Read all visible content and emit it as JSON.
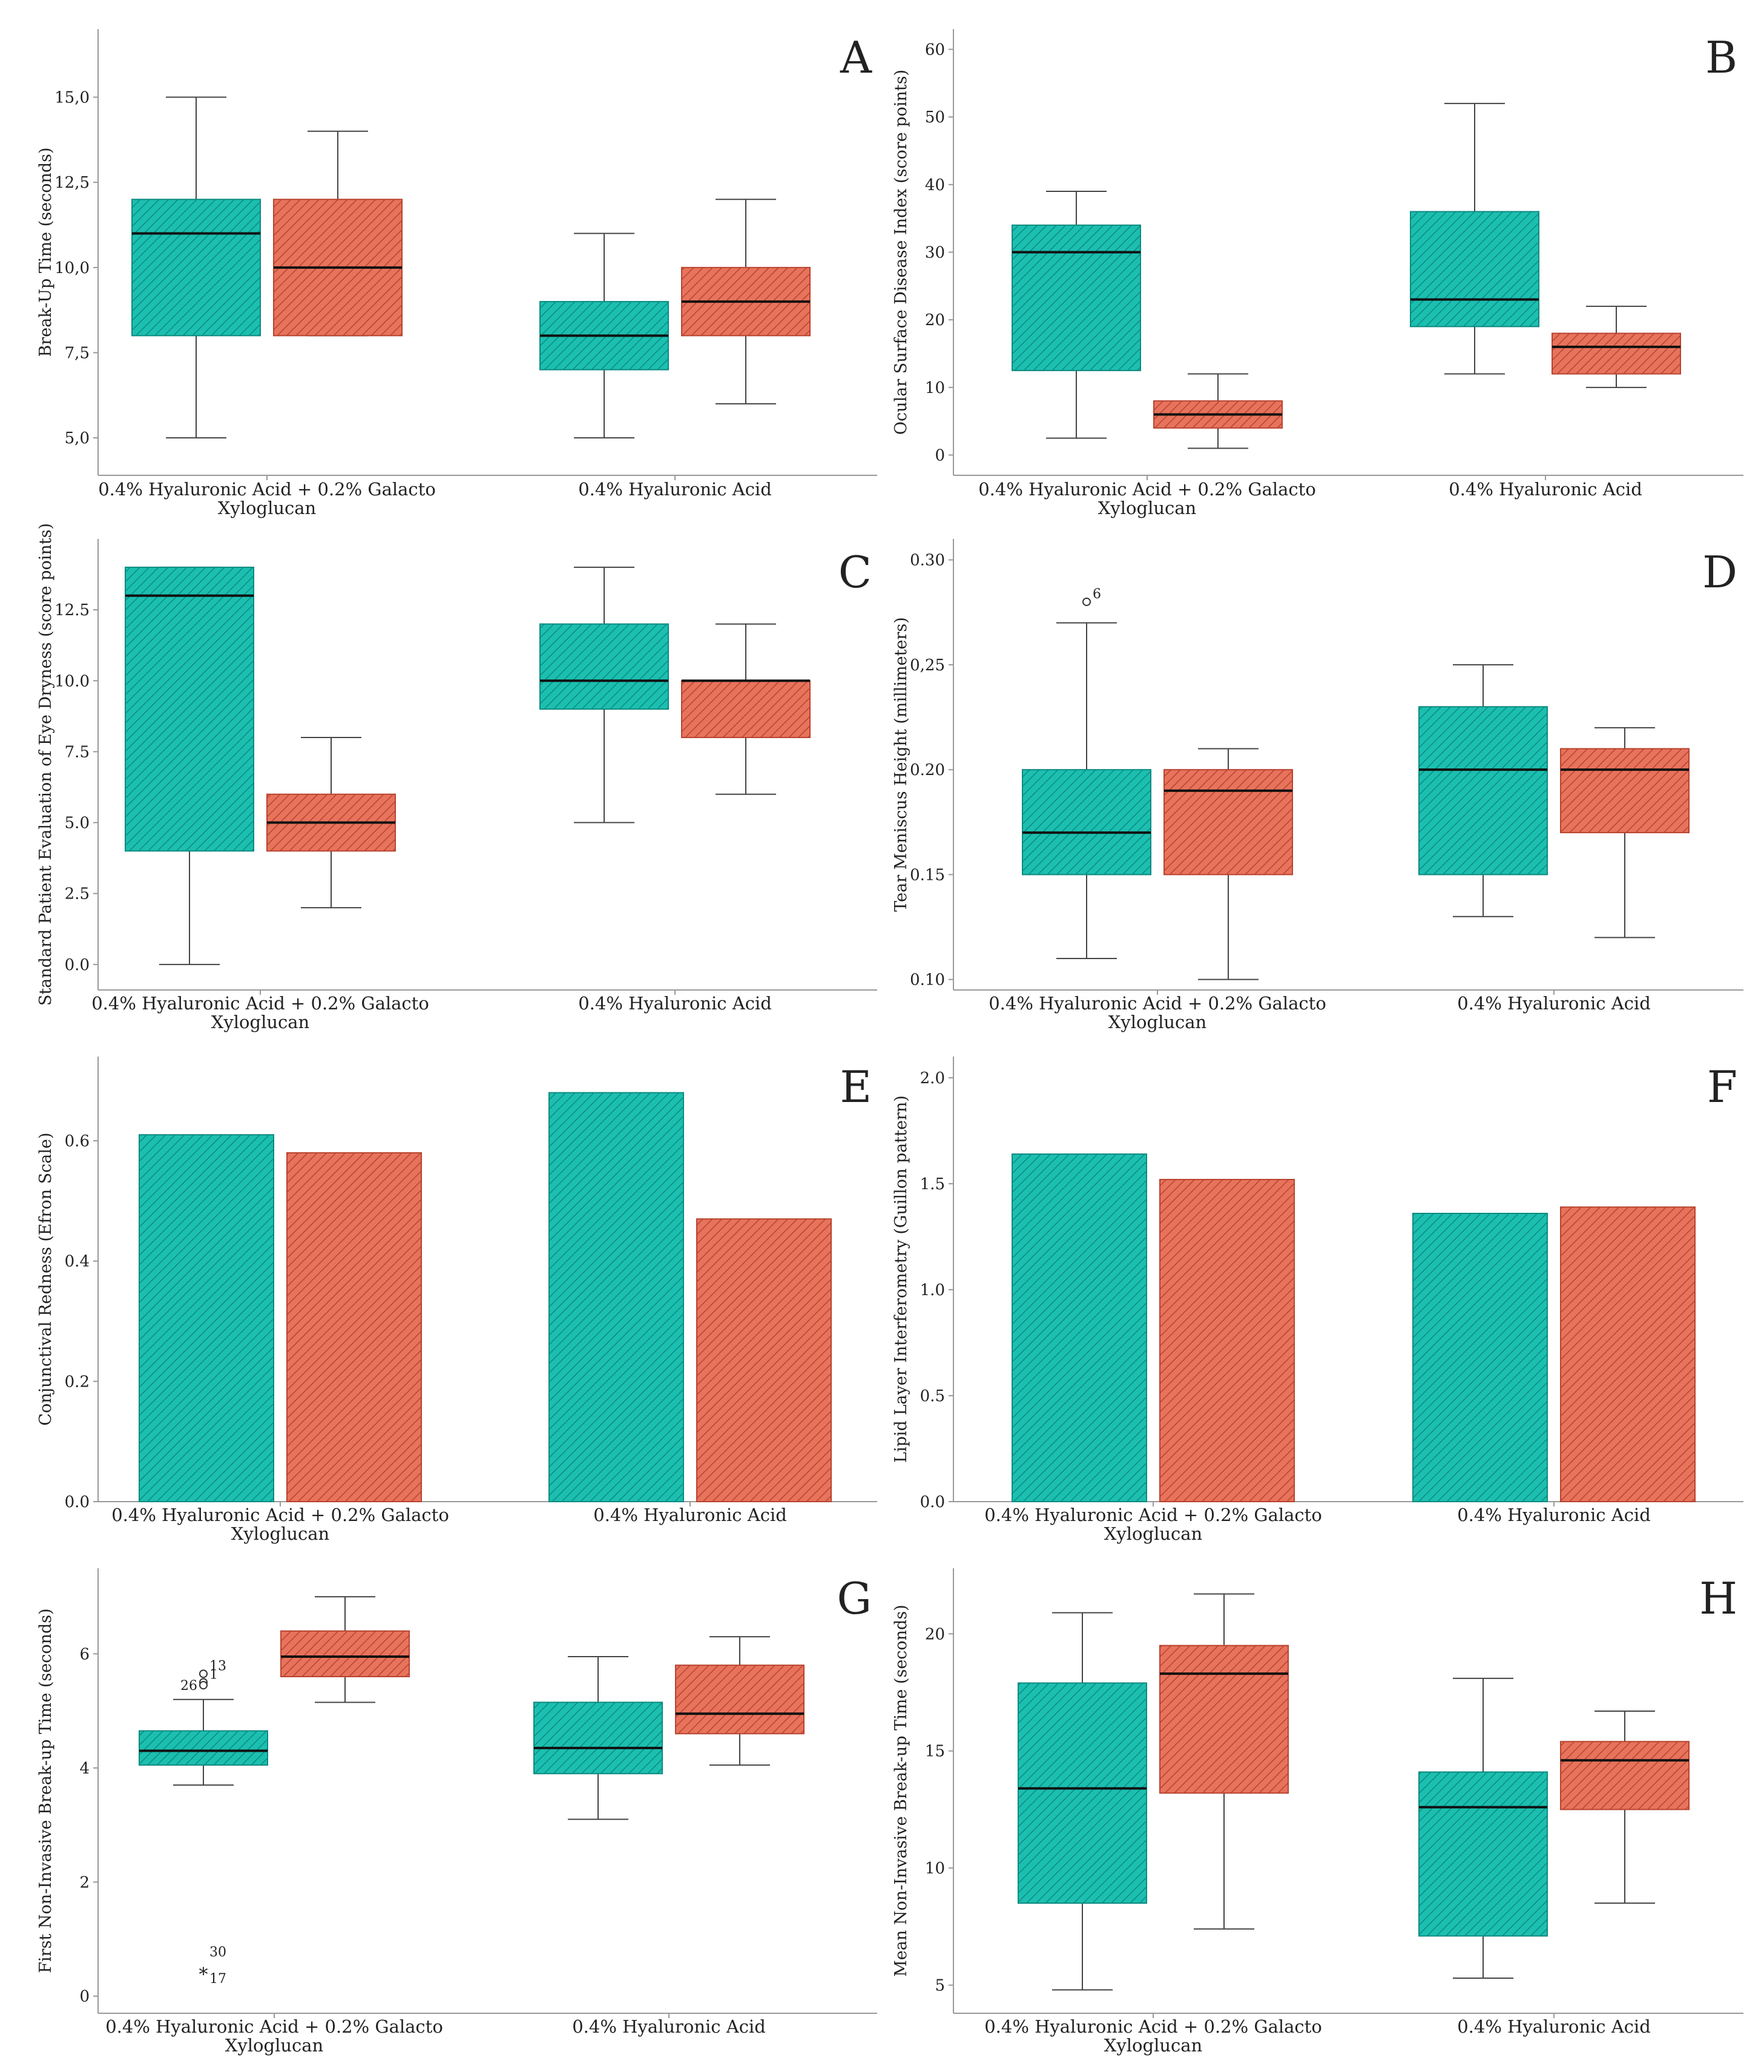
{
  "colors": {
    "teal": "#1bbfb0",
    "salmon": "#e8735c",
    "axis": "#999999",
    "whisker": "#444444"
  },
  "chart_data": [
    {
      "panel": "A",
      "type": "box",
      "ylabel": "Break-Up Time (seconds)",
      "ylim": [
        3.9,
        17.0
      ],
      "ticks": [
        5.0,
        7.5,
        10.0,
        12.5,
        15.0
      ],
      "tick_labels": [
        "5,0",
        "7,5",
        "10,0",
        "12,5",
        "15,0"
      ],
      "categories": [
        "0.4% Hyaluronic Acid + 0.2% Galacto Xyloglucan",
        "0.4% Hyaluronic Acid"
      ],
      "category_lines": [
        [
          "0.4% Hyaluronic Acid + 0.2% Galacto",
          "Xyloglucan"
        ],
        [
          "0.4% Hyaluronic Acid"
        ]
      ],
      "series": [
        {
          "name": "teal",
          "boxes": [
            {
              "min": 5,
              "q1": 8,
              "median": 11,
              "q3": 12,
              "max": 15
            },
            {
              "min": 5,
              "q1": 7,
              "median": 8,
              "q3": 9,
              "max": 11
            }
          ]
        },
        {
          "name": "salmon",
          "boxes": [
            {
              "min": 8,
              "q1": 8,
              "median": 10,
              "q3": 12,
              "max": 14
            },
            {
              "min": 6,
              "q1": 8,
              "median": 9,
              "q3": 10,
              "max": 12
            }
          ]
        }
      ],
      "outliers": []
    },
    {
      "panel": "B",
      "type": "box",
      "ylabel": "Ocular Surface Disease Index (score points)",
      "ylim": [
        -3,
        63
      ],
      "ticks": [
        0,
        10,
        20,
        30,
        40,
        50,
        60
      ],
      "tick_labels": [
        "0",
        "10",
        "20",
        "30",
        "40",
        "50",
        "60"
      ],
      "categories": [
        "0.4% Hyaluronic Acid + 0.2% Galacto Xyloglucan",
        "0.4% Hyaluronic Acid"
      ],
      "category_lines": [
        [
          "0.4% Hyaluronic Acid + 0.2% Galacto",
          "Xyloglucan"
        ],
        [
          "0.4% Hyaluronic Acid"
        ]
      ],
      "series": [
        {
          "name": "teal",
          "boxes": [
            {
              "min": 2.5,
              "q1": 12.5,
              "median": 30,
              "q3": 34,
              "max": 39
            },
            {
              "min": 12,
              "q1": 19,
              "median": 23,
              "q3": 36,
              "max": 52
            }
          ]
        },
        {
          "name": "salmon",
          "boxes": [
            {
              "min": 1,
              "q1": 4,
              "median": 6,
              "q3": 8,
              "max": 12
            },
            {
              "min": 10,
              "q1": 12,
              "median": 16,
              "q3": 18,
              "max": 22
            }
          ]
        }
      ],
      "outliers": []
    },
    {
      "panel": "C",
      "type": "box",
      "ylabel": "Standard Patient Evaluation of Eye Dryness (score points)",
      "ylim": [
        -0.9,
        15.0
      ],
      "ticks": [
        0,
        2.5,
        5,
        7.5,
        10,
        12.5
      ],
      "tick_labels": [
        "0.0",
        "2.5",
        "5.0",
        "7.5",
        "10.0",
        "12.5"
      ],
      "categories": [
        "0.4% Hyaluronic Acid + 0.2% Galacto Xyloglucan",
        "0.4% Hyaluronic Acid"
      ],
      "category_lines": [
        [
          "0.4% Hyaluronic Acid + 0.2% Galacto",
          "Xyloglucan"
        ],
        [
          "0.4% Hyaluronic Acid"
        ]
      ],
      "series": [
        {
          "name": "teal",
          "boxes": [
            {
              "min": 0,
              "q1": 4,
              "median": 13,
              "q3": 14,
              "max": 14
            },
            {
              "min": 5,
              "q1": 9,
              "median": 10,
              "q3": 12,
              "max": 14
            }
          ]
        },
        {
          "name": "salmon",
          "boxes": [
            {
              "min": 2,
              "q1": 4,
              "median": 5,
              "q3": 6,
              "max": 8
            },
            {
              "min": 6,
              "q1": 8,
              "median": 10,
              "q3": 10,
              "max": 12
            }
          ]
        }
      ],
      "outliers": []
    },
    {
      "panel": "D",
      "type": "box",
      "ylabel": "Tear Meniscus Height (millimeters)",
      "ylim": [
        0.095,
        0.31
      ],
      "ticks": [
        0.1,
        0.15,
        0.2,
        0.25,
        0.3
      ],
      "tick_labels": [
        "0.10",
        "0.15",
        "0.20",
        "0,25",
        "0.30"
      ],
      "categories": [
        "0.4% Hyaluronic Acid + 0.2% Galacto Xyloglucan",
        "0.4% Hyaluronic Acid"
      ],
      "category_lines": [
        [
          "0.4% Hyaluronic Acid + 0.2% Galacto",
          "Xyloglucan"
        ],
        [
          "0.4% Hyaluronic Acid"
        ]
      ],
      "series": [
        {
          "name": "teal",
          "boxes": [
            {
              "min": 0.11,
              "q1": 0.15,
              "median": 0.17,
              "q3": 0.2,
              "max": 0.27
            },
            {
              "min": 0.13,
              "q1": 0.15,
              "median": 0.2,
              "q3": 0.23,
              "max": 0.25
            }
          ]
        },
        {
          "name": "salmon",
          "boxes": [
            {
              "min": 0.1,
              "q1": 0.15,
              "median": 0.19,
              "q3": 0.2,
              "max": 0.21
            },
            {
              "min": 0.12,
              "q1": 0.17,
              "median": 0.2,
              "q3": 0.21,
              "max": 0.22
            }
          ]
        }
      ],
      "outliers": [
        {
          "category": 0,
          "series": 0,
          "value": 0.28,
          "symbol": "circle",
          "label": "6"
        }
      ]
    },
    {
      "panel": "E",
      "type": "bar",
      "ylabel": "Conjunctival Redness (Efron Scale)",
      "ylim": [
        0,
        0.74
      ],
      "ticks": [
        0.0,
        0.2,
        0.4,
        0.6
      ],
      "tick_labels": [
        "0.0",
        "0.2",
        "0.4",
        "0.6"
      ],
      "categories": [
        "0.4% Hyaluronic Acid + 0.2% Galacto Xyloglucan",
        "0.4% Hyaluronic Acid"
      ],
      "category_lines": [
        [
          "0.4% Hyaluronic Acid + 0.2% Galacto",
          "Xyloglucan"
        ],
        [
          "0.4% Hyaluronic Acid"
        ]
      ],
      "series": [
        {
          "name": "teal",
          "values": [
            0.61,
            0.68
          ]
        },
        {
          "name": "salmon",
          "values": [
            0.58,
            0.47
          ]
        }
      ]
    },
    {
      "panel": "F",
      "type": "bar",
      "ylabel": "Lipid Layer Interferometry (Guillon pattern)",
      "ylim": [
        0,
        2.1
      ],
      "ticks": [
        0.0,
        0.5,
        1.0,
        1.5,
        2.0
      ],
      "tick_labels": [
        "0.0",
        "0.5",
        "1.0",
        "1.5",
        "2.0"
      ],
      "categories": [
        "0.4% Hyaluronic Acid + 0.2% Galacto Xyloglucan",
        "0.4% Hyaluronic Acid"
      ],
      "category_lines": [
        [
          "0.4% Hyaluronic Acid + 0.2% Galacto",
          "Xyloglucan"
        ],
        [
          "0.4% Hyaluronic Acid"
        ]
      ],
      "series": [
        {
          "name": "teal",
          "values": [
            1.64,
            1.36
          ]
        },
        {
          "name": "salmon",
          "values": [
            1.52,
            1.39
          ]
        }
      ]
    },
    {
      "panel": "G",
      "type": "box",
      "ylabel": "First Non-Invasive Break-up Time (seconds)",
      "ylim": [
        -0.3,
        7.5
      ],
      "ticks": [
        0,
        2,
        4,
        6
      ],
      "tick_labels": [
        "0",
        "2",
        "4",
        "6"
      ],
      "categories": [
        "0.4% Hyaluronic Acid + 0.2% Galacto Xyloglucan",
        "0.4% Hyaluronic Acid"
      ],
      "category_lines": [
        [
          "0.4% Hyaluronic Acid + 0.2% Galacto",
          "Xyloglucan"
        ],
        [
          "0.4% Hyaluronic Acid"
        ]
      ],
      "series": [
        {
          "name": "teal",
          "boxes": [
            {
              "min": 3.7,
              "q1": 4.05,
              "median": 4.3,
              "q3": 4.65,
              "max": 5.2
            },
            {
              "min": 3.1,
              "q1": 3.9,
              "median": 4.35,
              "q3": 5.15,
              "max": 5.95
            }
          ]
        },
        {
          "name": "salmon",
          "boxes": [
            {
              "min": 5.15,
              "q1": 5.6,
              "median": 5.95,
              "q3": 6.4,
              "max": 7.0
            },
            {
              "min": 4.05,
              "q1": 4.6,
              "median": 4.95,
              "q3": 5.8,
              "max": 6.3
            }
          ]
        }
      ],
      "outliers": [
        {
          "category": 0,
          "series": 0,
          "value": 5.65,
          "symbol": "circle",
          "label": "13"
        },
        {
          "category": 0,
          "series": 0,
          "value": 5.5,
          "symbol": "circle",
          "label": "1"
        },
        {
          "category": 0,
          "series": 0,
          "value": 5.45,
          "symbol": "circle",
          "label": "26",
          "side": "left"
        },
        {
          "category": 0,
          "series": 0,
          "value": 0.4,
          "symbol": "star",
          "label": "30",
          "label_offset": -1
        },
        {
          "category": 0,
          "series": 0,
          "value": 0.4,
          "symbol": "none",
          "label": "17",
          "label_offset": 1
        }
      ]
    },
    {
      "panel": "H",
      "type": "box",
      "ylabel": "Mean Non-Invasive Break-up Time (seconds)",
      "ylim": [
        3.8,
        22.8
      ],
      "ticks": [
        5,
        10,
        15,
        20
      ],
      "tick_labels": [
        "5",
        "10",
        "15",
        "20"
      ],
      "categories": [
        "0.4% Hyaluronic Acid + 0.2% Galacto Xyloglucan",
        "0.4% Hyaluronic Acid"
      ],
      "category_lines": [
        [
          "0.4% Hyaluronic Acid + 0.2% Galacto",
          "Xyloglucan"
        ],
        [
          "0.4% Hyaluronic Acid"
        ]
      ],
      "series": [
        {
          "name": "teal",
          "boxes": [
            {
              "min": 4.8,
              "q1": 8.5,
              "median": 13.4,
              "q3": 17.9,
              "max": 20.9
            },
            {
              "min": 5.3,
              "q1": 7.1,
              "median": 12.6,
              "q3": 14.1,
              "max": 18.1
            }
          ]
        },
        {
          "name": "salmon",
          "boxes": [
            {
              "min": 7.4,
              "q1": 13.2,
              "median": 18.3,
              "q3": 19.5,
              "max": 21.7
            },
            {
              "min": 8.5,
              "q1": 12.5,
              "median": 14.6,
              "q3": 15.4,
              "max": 16.7
            }
          ]
        }
      ],
      "outliers": []
    }
  ]
}
